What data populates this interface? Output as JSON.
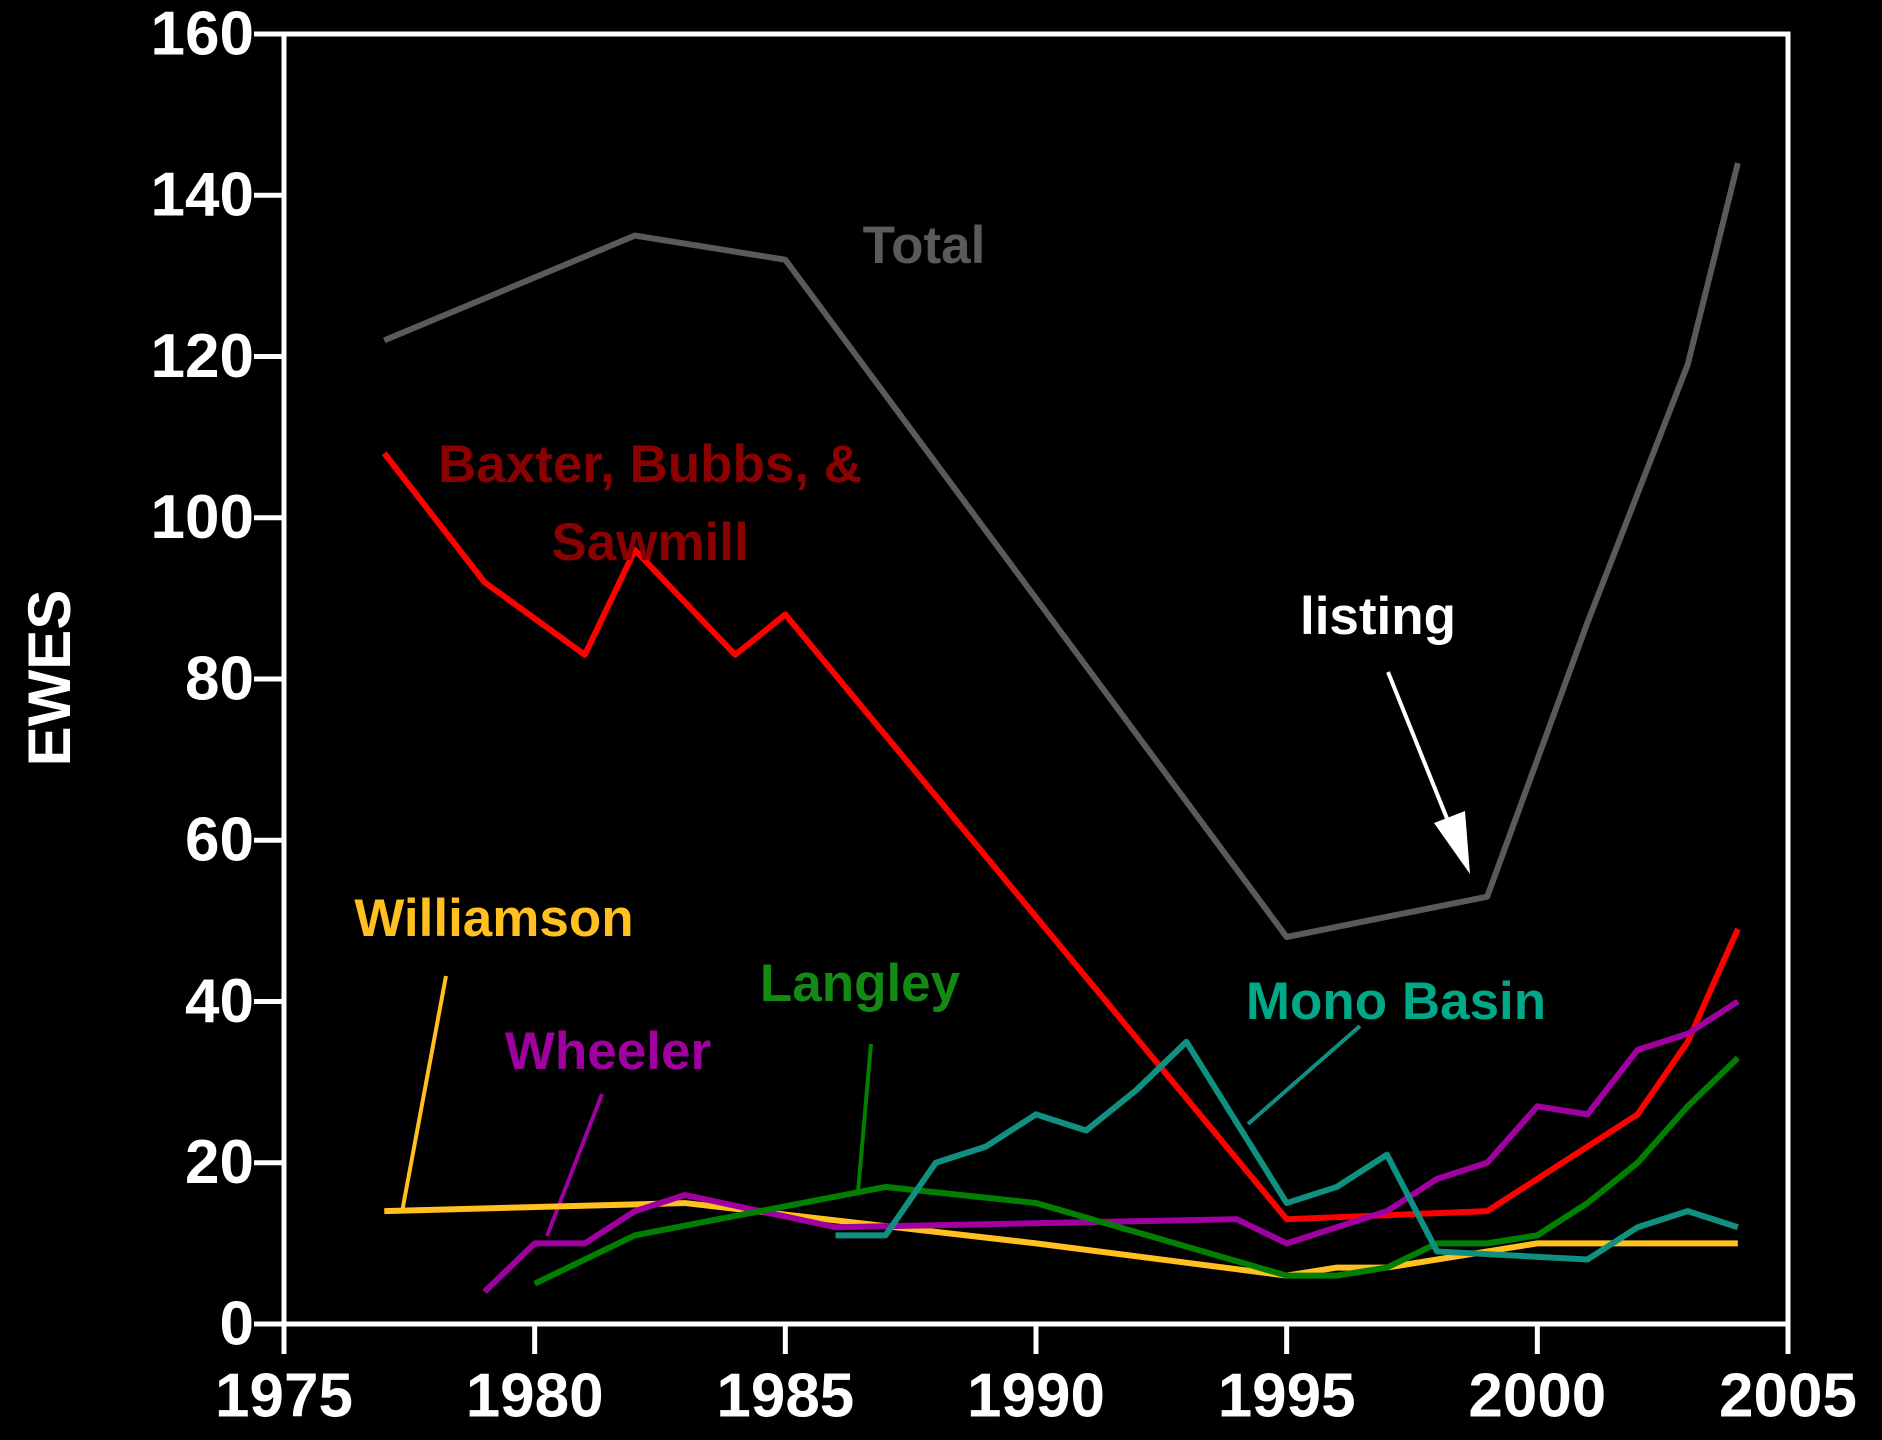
{
  "chart_data": {
    "type": "line",
    "y_label": "EWES",
    "xlim": [
      1975,
      2005
    ],
    "xticks": [
      1975,
      1980,
      1985,
      1990,
      1995,
      2000,
      2005
    ],
    "ylim": [
      0,
      160
    ],
    "yticks": [
      0,
      20,
      40,
      60,
      80,
      100,
      120,
      140,
      160
    ],
    "annotations": [
      "listing"
    ],
    "series": [
      {
        "name": "Total",
        "color": "#5a5a5a",
        "label_color": "#5a5a5a",
        "x": [
          1977,
          1982,
          1985,
          1995,
          1999,
          2000,
          2001,
          2002,
          2003,
          2004
        ],
        "values": [
          122,
          135,
          132,
          48,
          53,
          70,
          87,
          103,
          119,
          144
        ]
      },
      {
        "name": "Baxter, Bubbs, & Sawmill",
        "color": "#ff0000",
        "label_color": "#8b0000",
        "x": [
          1977,
          1979,
          1981,
          1982,
          1984,
          1985,
          1995,
          1999,
          2002,
          2003,
          2004
        ],
        "values": [
          108,
          92,
          83,
          96,
          83,
          88,
          13,
          14,
          26,
          35,
          49
        ]
      },
      {
        "name": "Williamson",
        "color": "#ffc020",
        "label_color": "#ffc020",
        "x": [
          1977,
          1983,
          1990,
          1995,
          1996,
          1997,
          2000,
          2004
        ],
        "values": [
          14,
          15,
          10,
          6,
          7,
          7,
          10,
          10
        ]
      },
      {
        "name": "Wheeler",
        "color": "#a000a0",
        "label_color": "#a000a0",
        "x": [
          1979,
          1980,
          1981,
          1982,
          1983,
          1986,
          1994,
          1995,
          1997,
          1998,
          1999,
          2000,
          2001,
          2002,
          2003,
          2004
        ],
        "values": [
          4,
          10,
          10,
          14,
          16,
          12,
          13,
          10,
          14,
          18,
          20,
          27,
          26,
          34,
          36,
          40
        ]
      },
      {
        "name": "Langley",
        "color": "#007f00",
        "label_color": "#138a13",
        "x": [
          1980,
          1982,
          1987,
          1990,
          1995,
          1996,
          1997,
          1998,
          1999,
          2000,
          2001,
          2002,
          2003,
          2004
        ],
        "values": [
          5,
          11,
          17,
          15,
          6,
          6,
          7,
          10,
          10,
          11,
          15,
          20,
          27,
          33
        ]
      },
      {
        "name": "Mono Basin",
        "color": "#109080",
        "label_color": "#00a888",
        "x": [
          1986,
          1987,
          1988,
          1989,
          1990,
          1991,
          1992,
          1993,
          1995,
          1996,
          1997,
          1998,
          2001,
          2002,
          2003,
          2004
        ],
        "values": [
          11,
          11,
          20,
          22,
          26,
          24,
          29,
          35,
          15,
          17,
          21,
          9,
          8,
          12,
          14,
          12
        ]
      }
    ]
  }
}
